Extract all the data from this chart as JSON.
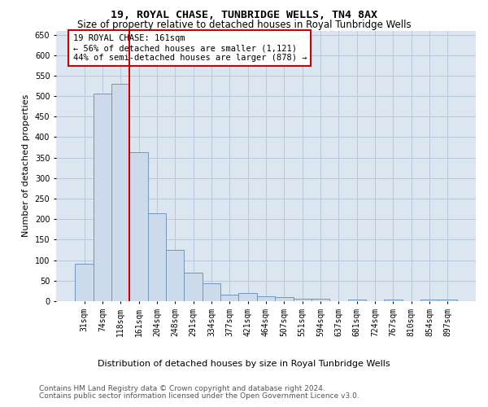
{
  "title": "19, ROYAL CHASE, TUNBRIDGE WELLS, TN4 8AX",
  "subtitle": "Size of property relative to detached houses in Royal Tunbridge Wells",
  "xlabel": "Distribution of detached houses by size in Royal Tunbridge Wells",
  "ylabel": "Number of detached properties",
  "footer_line1": "Contains HM Land Registry data © Crown copyright and database right 2024.",
  "footer_line2": "Contains public sector information licensed under the Open Government Licence v3.0.",
  "annotation_line1": "19 ROYAL CHASE: 161sqm",
  "annotation_line2": "← 56% of detached houses are smaller (1,121)",
  "annotation_line3": "44% of semi-detached houses are larger (878) →",
  "bar_labels": [
    "31sqm",
    "74sqm",
    "118sqm",
    "161sqm",
    "204sqm",
    "248sqm",
    "291sqm",
    "334sqm",
    "377sqm",
    "421sqm",
    "464sqm",
    "507sqm",
    "551sqm",
    "594sqm",
    "637sqm",
    "681sqm",
    "724sqm",
    "767sqm",
    "810sqm",
    "854sqm",
    "897sqm"
  ],
  "bar_values": [
    92,
    507,
    530,
    363,
    215,
    126,
    70,
    43,
    16,
    19,
    12,
    10,
    6,
    5,
    0,
    4,
    0,
    3,
    0,
    4,
    4
  ],
  "bar_color": "#cddaec",
  "bar_edge_color": "#7096bc",
  "vline_color": "#cc0000",
  "ylim": [
    0,
    660
  ],
  "yticks": [
    0,
    50,
    100,
    150,
    200,
    250,
    300,
    350,
    400,
    450,
    500,
    550,
    600,
    650
  ],
  "grid_color": "#b8c8dc",
  "plot_bg_color": "#dce6f0",
  "title_fontsize": 9.5,
  "subtitle_fontsize": 8.5,
  "ylabel_fontsize": 8,
  "xlabel_fontsize": 8,
  "tick_fontsize": 7,
  "annotation_fontsize": 7.5,
  "footer_fontsize": 6.5
}
